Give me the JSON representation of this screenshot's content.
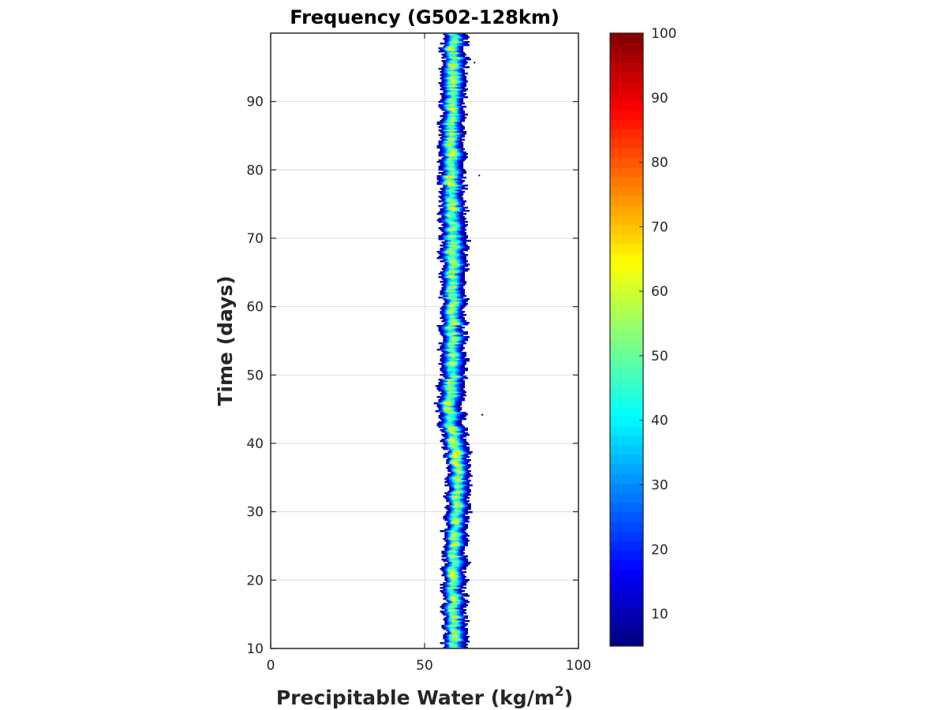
{
  "chart_data": {
    "type": "heatmap",
    "title": "Frequency (G502-128km)",
    "xlabel": "Precipitable Water (kg/m",
    "xlabel_superscript": "2",
    "xlabel_suffix": ")",
    "ylabel": "Time (days)",
    "xlim": [
      0,
      100
    ],
    "ylim": [
      10,
      100
    ],
    "xticks": [
      0,
      50,
      100
    ],
    "yticks": [
      10,
      20,
      30,
      40,
      50,
      60,
      70,
      80,
      90
    ],
    "grid": true,
    "colormap": "jet",
    "colorbar": {
      "position": "right",
      "clim": [
        5,
        100
      ],
      "ticks": [
        10,
        20,
        30,
        40,
        50,
        60,
        70,
        80,
        90,
        100
      ]
    },
    "band": {
      "description_points": [
        {
          "time": 10,
          "left": 56.5,
          "center": 59.5,
          "right": 63.5
        },
        {
          "time": 20,
          "left": 56.0,
          "center": 59.0,
          "right": 63.0
        },
        {
          "time": 30,
          "left": 57.0,
          "center": 60.0,
          "right": 64.0
        },
        {
          "time": 35,
          "left": 57.5,
          "center": 61.0,
          "right": 65.0
        },
        {
          "time": 40,
          "left": 56.5,
          "center": 59.5,
          "right": 63.5
        },
        {
          "time": 45,
          "left": 54.0,
          "center": 57.5,
          "right": 62.0
        },
        {
          "time": 50,
          "left": 55.5,
          "center": 59.0,
          "right": 63.0
        },
        {
          "time": 60,
          "left": 55.5,
          "center": 59.0,
          "right": 63.0
        },
        {
          "time": 70,
          "left": 55.5,
          "center": 59.0,
          "right": 63.5
        },
        {
          "time": 80,
          "left": 55.0,
          "center": 58.5,
          "right": 62.5
        },
        {
          "time": 90,
          "left": 55.5,
          "center": 59.0,
          "right": 63.0
        },
        {
          "time": 100,
          "left": 56.0,
          "center": 59.5,
          "right": 63.5
        }
      ],
      "peak_frequency": 68,
      "outliers": [
        {
          "time": 79.3,
          "x": 67.5
        },
        {
          "time": 44.3,
          "x": 68.5
        },
        {
          "time": 95.8,
          "x": 66.0
        }
      ]
    }
  }
}
